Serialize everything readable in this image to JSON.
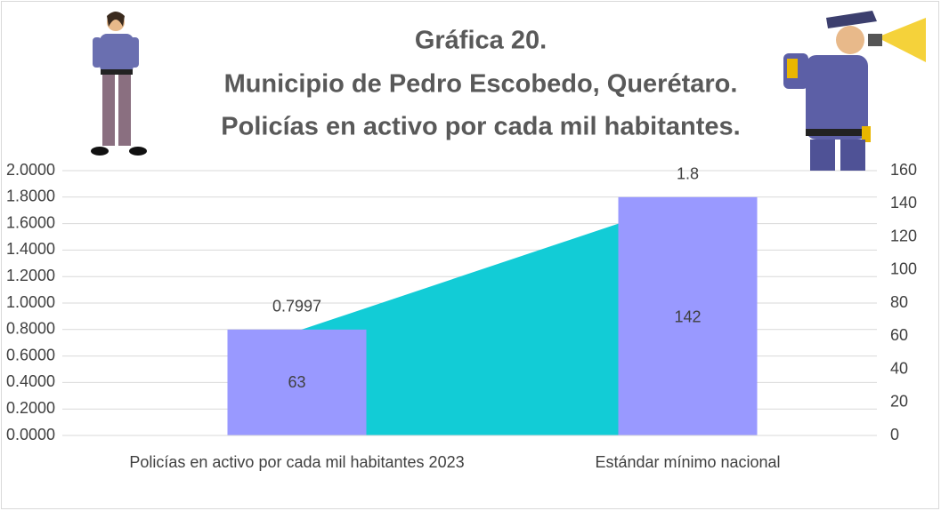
{
  "chart_data": {
    "type": "combo",
    "title": [
      "Gráfica 20.",
      "Municipio de Pedro Escobedo, Querétaro.",
      "Policías en activo por cada mil habitantes."
    ],
    "categories": [
      "Policías en activo por cada mil habitantes 2023",
      "Estándar mínimo nacional"
    ],
    "series": [
      {
        "type": "bar",
        "color": "#9999ff",
        "values": [
          0.7997,
          1.8
        ]
      },
      {
        "type": "area",
        "axis": "y2",
        "color": "#12ccd6",
        "values": [
          63,
          142
        ]
      }
    ],
    "ylim": [
      0,
      2
    ],
    "yticks": [
      {
        "value": 0,
        "label": "0.0000"
      },
      {
        "value": 0.2,
        "label": "0.2000"
      },
      {
        "value": 0.4,
        "label": "0.4000"
      },
      {
        "value": 0.6,
        "label": "0.6000"
      },
      {
        "value": 0.8,
        "label": "0.8000"
      },
      {
        "value": 1,
        "label": "1.0000"
      },
      {
        "value": 1.2,
        "label": "1.2000"
      },
      {
        "value": 1.4,
        "label": "1.4000"
      },
      {
        "value": 1.6,
        "label": "1.6000"
      },
      {
        "value": 1.8,
        "label": "1.8000"
      },
      {
        "value": 2,
        "label": "2.0000"
      }
    ],
    "y2lim": [
      0,
      160
    ],
    "y2ticks": [
      0,
      20,
      40,
      60,
      80,
      100,
      120,
      140,
      160
    ],
    "grid": true
  }
}
